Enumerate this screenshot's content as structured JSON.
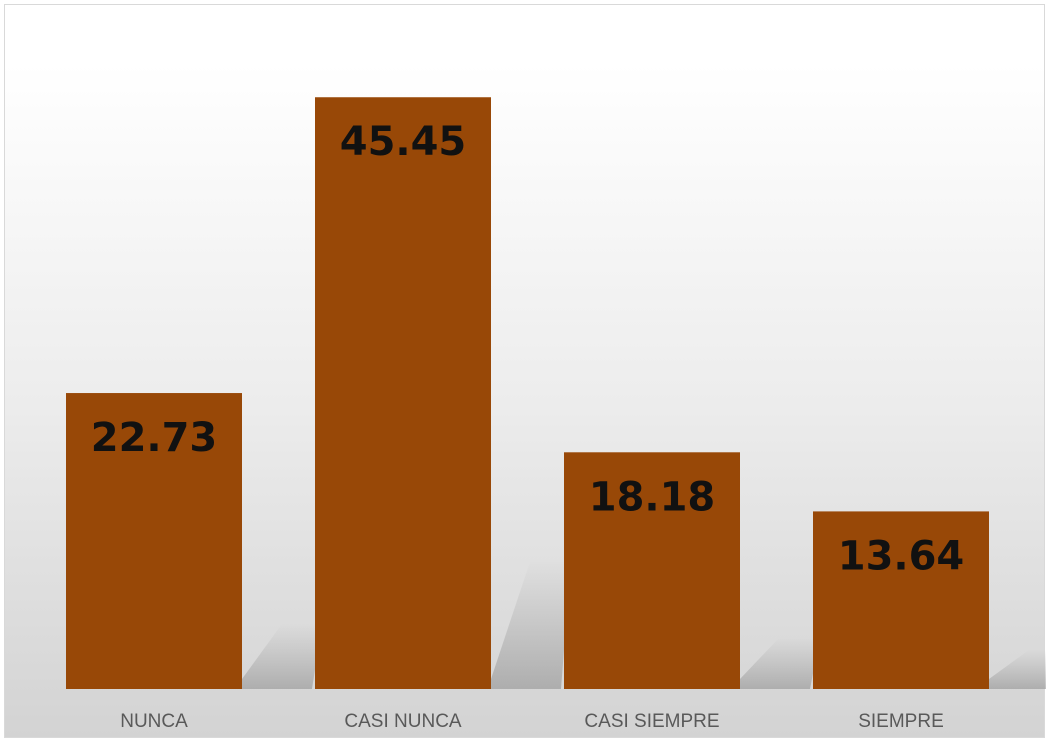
{
  "chart_data": {
    "type": "bar",
    "categories": [
      "NUNCA",
      "CASI NUNCA",
      "CASI SIEMPRE",
      "SIEMPRE"
    ],
    "values": [
      22.73,
      45.45,
      18.18,
      13.64
    ],
    "data_labels": [
      "22.73",
      "45.45",
      "18.18",
      "13.64"
    ],
    "title": "",
    "xlabel": "",
    "ylabel": "",
    "ylim": [
      0,
      50
    ],
    "grid": false,
    "legend": "none",
    "bar_color": "#984807"
  }
}
